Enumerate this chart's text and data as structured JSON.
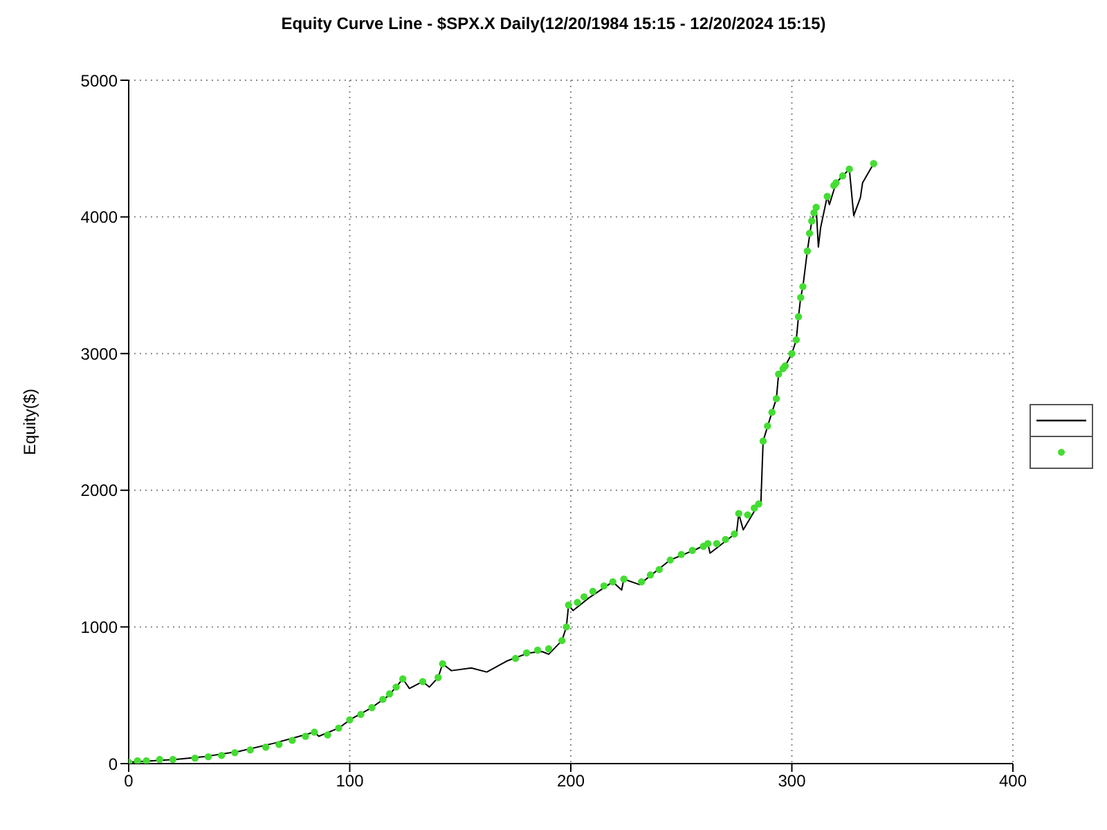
{
  "chart_data": {
    "type": "line",
    "title": "Equity Curve Line - $SPX.X Daily(12/20/1984 15:15 - 12/20/2024 15:15)",
    "ylabel": "Equity($)",
    "xlim": [
      0,
      400
    ],
    "xticks": [
      0,
      100,
      200,
      300,
      400
    ],
    "ylim": [
      0,
      5000
    ],
    "yticks": [
      0,
      1000,
      2000,
      3000,
      4000,
      5000
    ],
    "grid": true,
    "series": [
      {
        "color": "#000000",
        "marker": "none",
        "x": [
          0,
          21,
          34,
          50,
          66,
          75,
          84,
          86,
          95,
          101,
          109,
          117,
          121,
          124,
          127,
          133,
          136,
          140,
          142,
          146,
          155,
          162,
          171,
          181,
          187,
          190,
          196,
          198,
          199,
          201,
          208,
          219,
          223,
          224,
          231,
          245,
          257,
          262,
          263,
          275,
          276,
          278,
          285,
          286,
          287,
          291,
          293,
          294,
          297,
          300,
          302,
          303,
          304,
          305,
          307,
          309,
          311,
          312,
          313,
          316,
          317,
          320,
          326,
          328,
          331,
          332,
          337
        ],
        "values": [
          10,
          30,
          50,
          90,
          150,
          190,
          230,
          200,
          260,
          330,
          400,
          490,
          560,
          620,
          550,
          600,
          560,
          630,
          730,
          680,
          700,
          670,
          750,
          810,
          820,
          800,
          900,
          1000,
          1160,
          1120,
          1210,
          1330,
          1270,
          1350,
          1310,
          1490,
          1570,
          1610,
          1540,
          1690,
          1830,
          1710,
          1900,
          1910,
          2360,
          2570,
          2670,
          2850,
          2910,
          3000,
          3100,
          3270,
          3410,
          3490,
          3750,
          3970,
          4070,
          3780,
          3920,
          4150,
          4090,
          4250,
          4350,
          4010,
          4140,
          4250,
          4390
        ]
      },
      {
        "type": "scatter",
        "color": "#44dd33",
        "marker": "circle",
        "x": [
          0,
          4,
          8,
          14,
          20,
          30,
          36,
          42,
          48,
          55,
          62,
          68,
          74,
          80,
          84,
          90,
          95,
          100,
          105,
          110,
          115,
          118,
          121,
          124,
          133,
          140,
          142,
          175,
          180,
          185,
          190,
          196,
          198,
          199,
          203,
          206,
          210,
          215,
          219,
          224,
          232,
          236,
          240,
          245,
          250,
          255,
          260,
          262,
          266,
          270,
          274,
          276,
          280,
          283,
          285,
          287,
          289,
          291,
          293,
          294,
          296,
          297,
          300,
          302,
          303,
          304,
          305,
          307,
          308,
          309,
          310,
          311,
          316,
          319,
          320,
          323,
          326,
          337
        ],
        "values": [
          10,
          20,
          20,
          30,
          30,
          40,
          50,
          60,
          80,
          100,
          120,
          140,
          170,
          200,
          230,
          210,
          260,
          320,
          360,
          410,
          470,
          510,
          560,
          620,
          600,
          630,
          730,
          770,
          810,
          830,
          840,
          900,
          1000,
          1160,
          1180,
          1220,
          1260,
          1300,
          1330,
          1350,
          1330,
          1380,
          1420,
          1490,
          1530,
          1560,
          1590,
          1610,
          1610,
          1640,
          1680,
          1830,
          1820,
          1870,
          1900,
          2360,
          2470,
          2570,
          2670,
          2850,
          2890,
          2910,
          3000,
          3100,
          3270,
          3410,
          3490,
          3750,
          3880,
          3970,
          4030,
          4070,
          4150,
          4230,
          4250,
          4300,
          4350,
          4390
        ]
      }
    ]
  }
}
